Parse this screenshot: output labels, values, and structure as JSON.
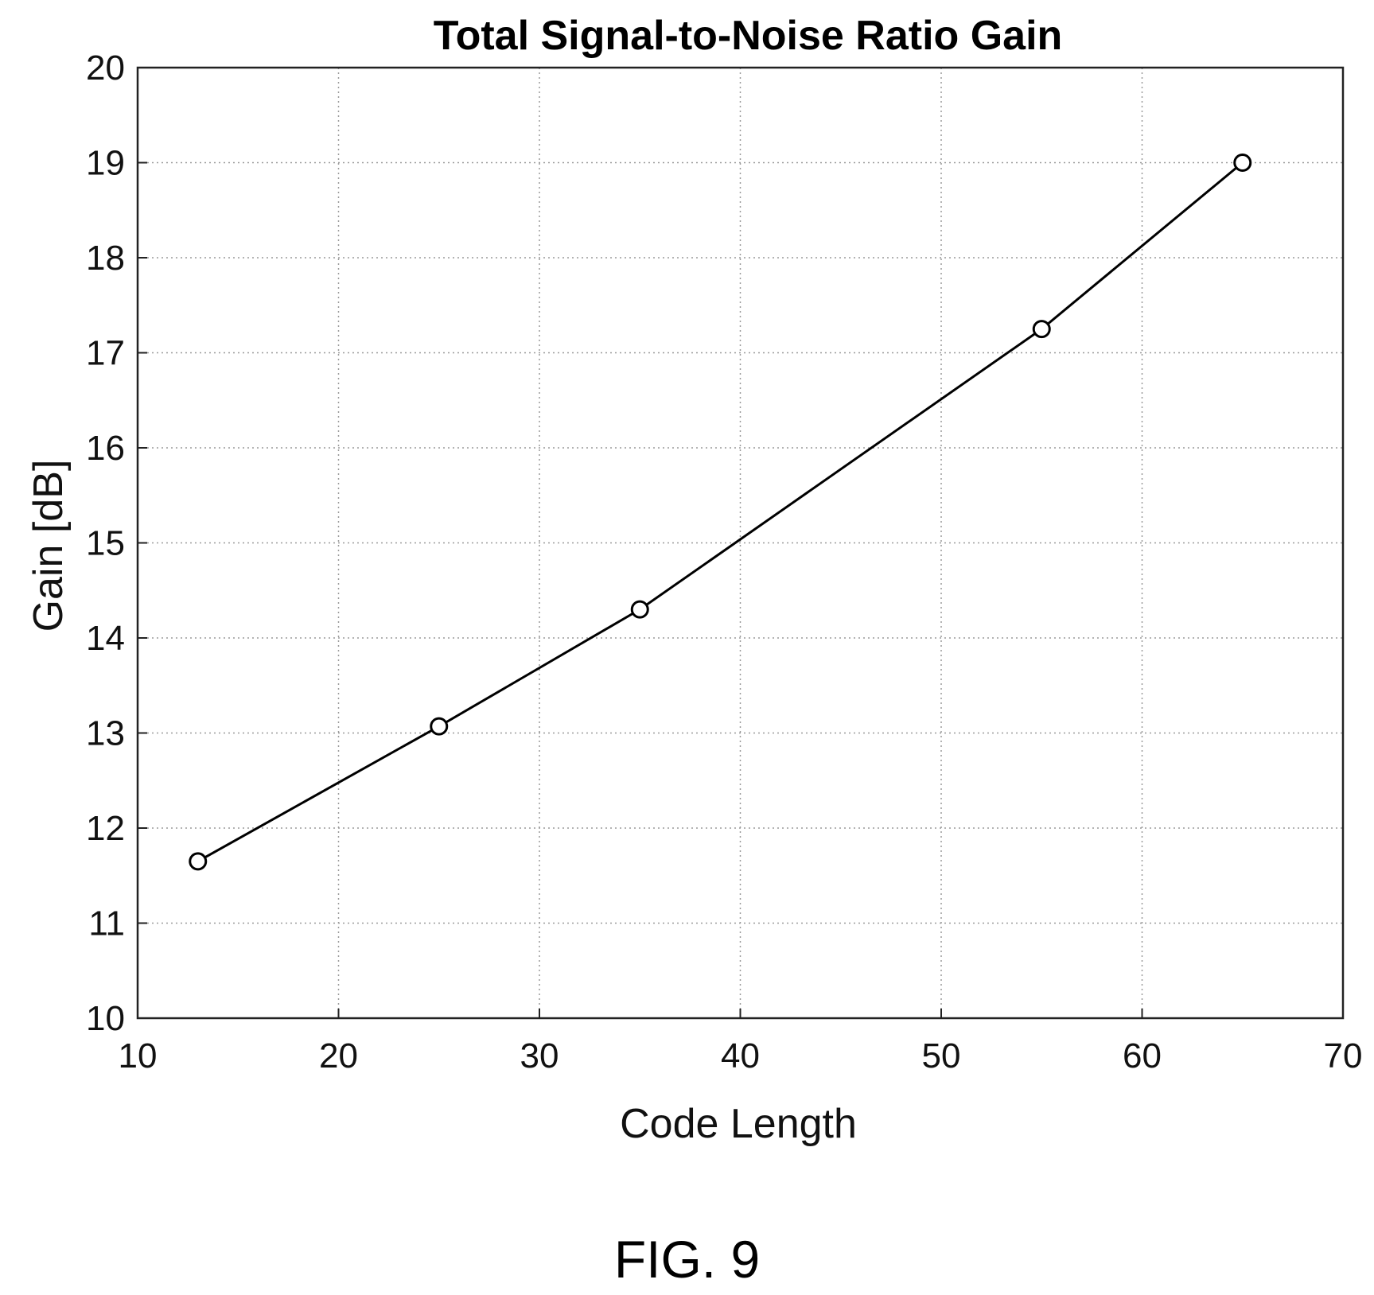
{
  "figure_caption": "FIG. 9",
  "chart_data": {
    "type": "line",
    "title": "Total Signal-to-Noise Ratio Gain",
    "xlabel": "Code Length",
    "ylabel": "Gain [dB]",
    "xlim": [
      10,
      70
    ],
    "ylim": [
      10,
      20
    ],
    "xticks": [
      "10",
      "20",
      "30",
      "40",
      "50",
      "60",
      "70"
    ],
    "yticks": [
      "10",
      "11",
      "12",
      "13",
      "14",
      "15",
      "16",
      "17",
      "18",
      "19",
      "20"
    ],
    "grid": true,
    "marker": "circle",
    "series": [
      {
        "x": [
          13,
          25,
          35,
          55,
          65
        ],
        "y": [
          11.65,
          13.07,
          14.3,
          17.25,
          19.0
        ]
      }
    ]
  }
}
